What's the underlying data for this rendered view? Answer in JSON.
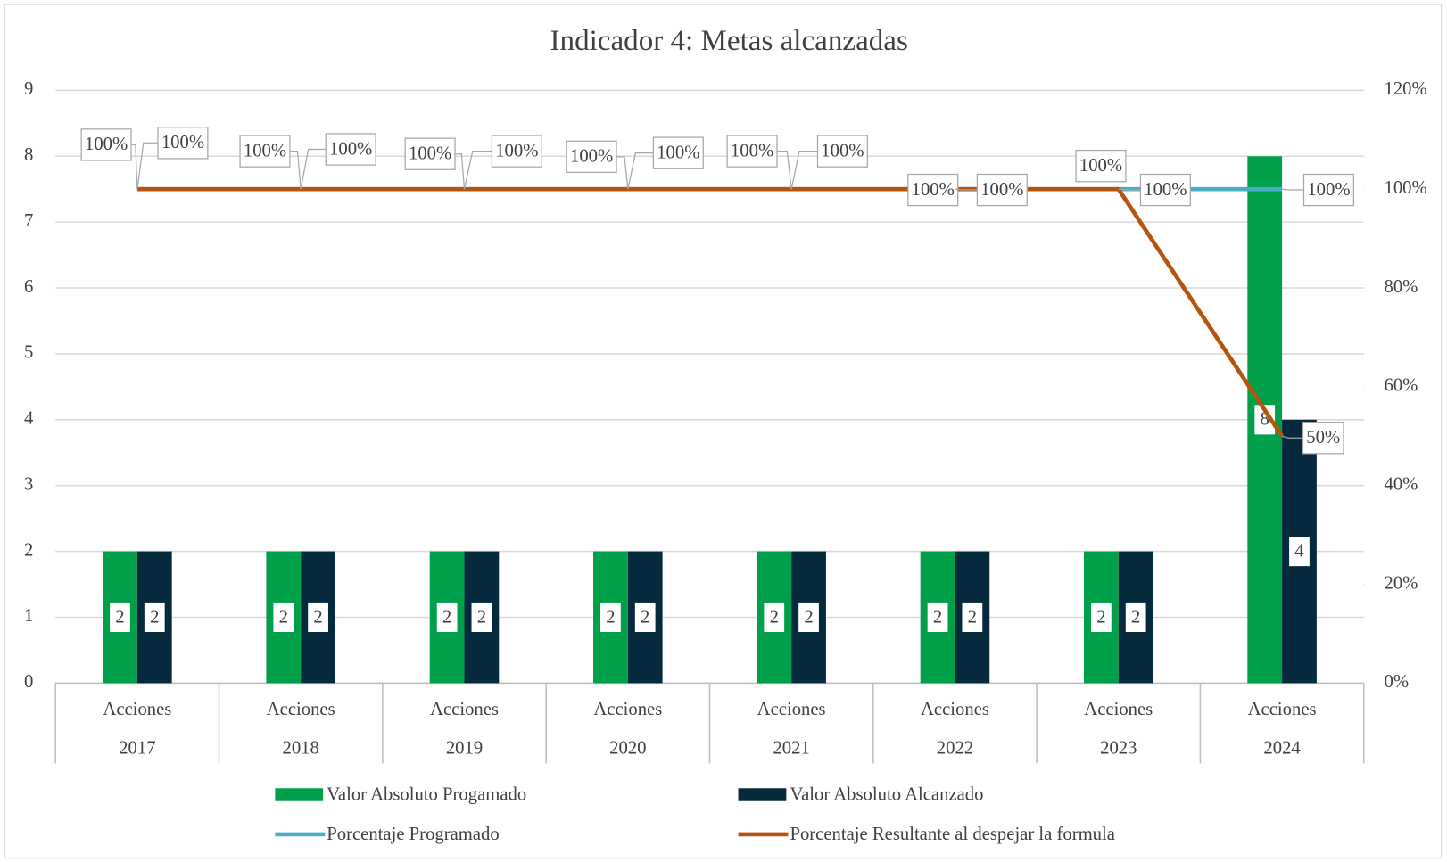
{
  "chart_data": {
    "type": "bar",
    "title": "Indicador 4: Metas alcanzadas",
    "categories": [
      "2017",
      "2018",
      "2019",
      "2020",
      "2021",
      "2022",
      "2023",
      "2024"
    ],
    "subcategories": [
      "Acciones",
      "Acciones",
      "Acciones",
      "Acciones",
      "Acciones",
      "Acciones",
      "Acciones",
      "Acciones"
    ],
    "ylim": [
      0,
      9
    ],
    "yticks": [
      0,
      1,
      2,
      3,
      4,
      5,
      6,
      7,
      8,
      9
    ],
    "y2lim": [
      0,
      120
    ],
    "y2ticks": [
      {
        "value": 0,
        "label": "0%"
      },
      {
        "value": 20,
        "label": "20%"
      },
      {
        "value": 40,
        "label": "40%"
      },
      {
        "value": 60,
        "label": "60%"
      },
      {
        "value": 80,
        "label": "80%"
      },
      {
        "value": 100,
        "label": "100%"
      },
      {
        "value": 120,
        "label": "120%"
      }
    ],
    "grid": true,
    "legend": "bottom",
    "series": [
      {
        "name": "Valor Absoluto Progamado",
        "type": "bar",
        "color": "#00a04a",
        "values": [
          2,
          2,
          2,
          2,
          2,
          2,
          2,
          8
        ]
      },
      {
        "name": "Valor Absoluto Alcanzado",
        "type": "bar",
        "color": "#062a3d",
        "values": [
          2,
          2,
          2,
          2,
          2,
          2,
          2,
          4
        ]
      },
      {
        "name": "Porcentaje Programado",
        "type": "line",
        "axis": "y2",
        "color": "#4bacc6",
        "values": [
          100,
          100,
          100,
          100,
          100,
          100,
          100,
          100
        ],
        "value_labels": [
          "100%",
          "100%",
          "100%",
          "100%",
          "100%",
          "100%",
          "100%",
          "100%"
        ]
      },
      {
        "name": "Porcentaje Resultante al despejar la formula",
        "type": "line",
        "axis": "y2",
        "color": "#b5540f",
        "values": [
          100,
          100,
          100,
          100,
          100,
          100,
          100,
          50
        ],
        "value_labels": [
          "100%",
          "100%",
          "100%",
          "100%",
          "100%",
          "100%",
          "100%",
          "50%"
        ]
      }
    ]
  }
}
